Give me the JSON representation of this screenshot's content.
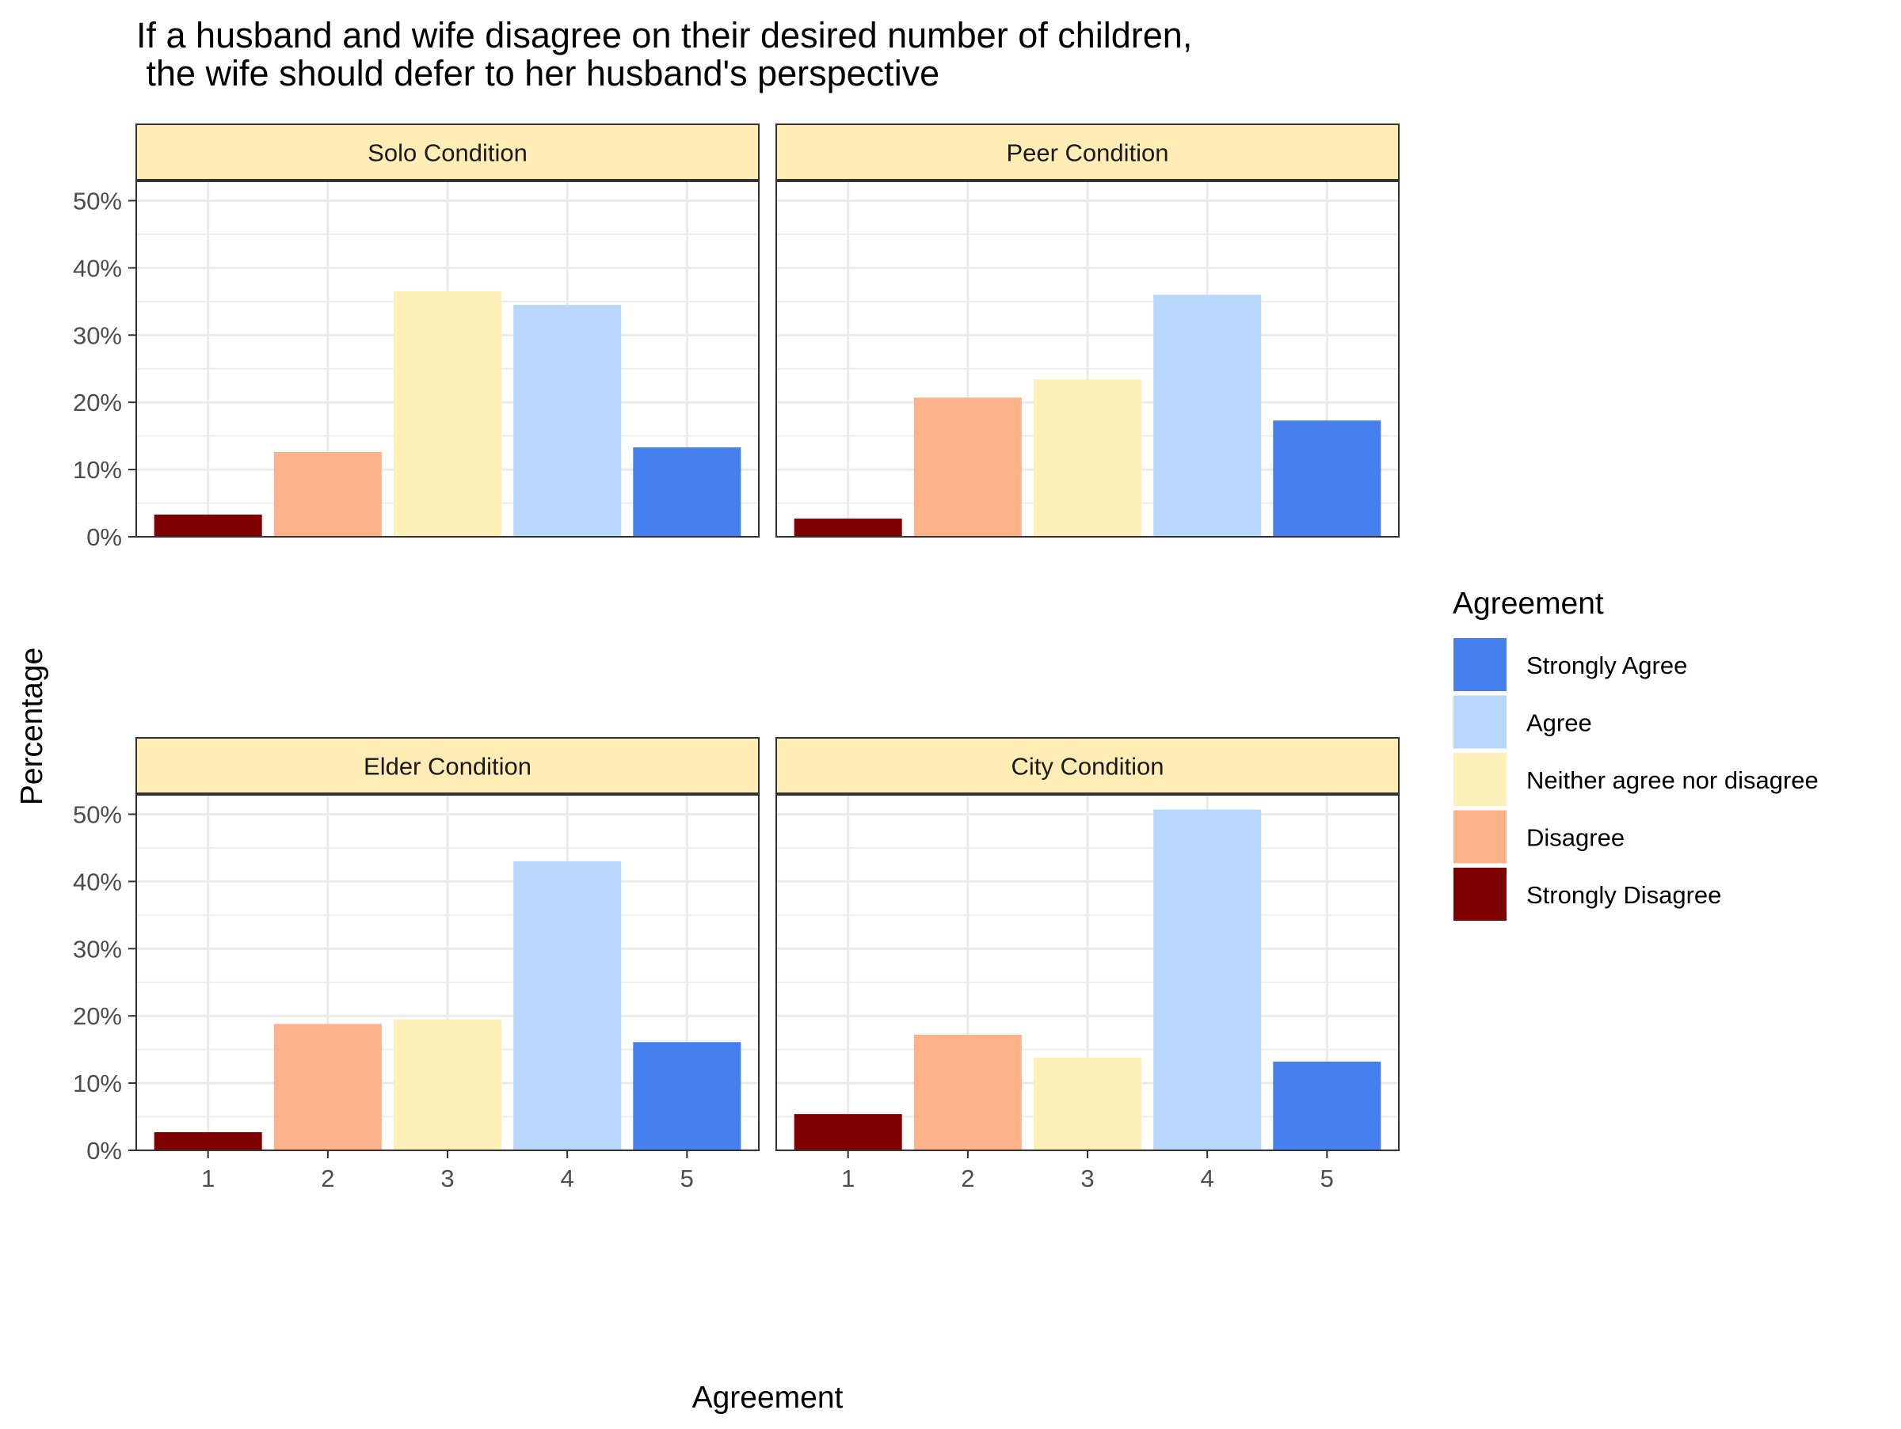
{
  "chart_data": {
    "type": "bar",
    "title_lines": [
      "If a husband and wife disagree on their desired number of children,",
      " the wife should defer to her husband's perspective"
    ],
    "xlabel": "Agreement",
    "ylabel": "Percentage",
    "categories": [
      "1",
      "2",
      "3",
      "4",
      "5"
    ],
    "y_ticks": [
      "0%",
      "10%",
      "20%",
      "30%",
      "40%",
      "50%"
    ],
    "ylim": [
      0,
      53
    ],
    "grid": true,
    "legend": {
      "title": "Agreement",
      "position": "right",
      "entries": [
        {
          "label": "Strongly Agree",
          "color": "#4580EE"
        },
        {
          "label": "Agree",
          "color": "#B9D7FD"
        },
        {
          "label": "Neither agree nor disagree",
          "color": "#FFEFB9"
        },
        {
          "label": "Disagree",
          "color": "#FDB28A"
        },
        {
          "label": "Strongly Disagree",
          "color": "#7E0000"
        }
      ]
    },
    "category_colors": [
      "#7E0000",
      "#FDB28A",
      "#FFEFB9",
      "#B9D7FD",
      "#4580EE"
    ],
    "panels": [
      {
        "name": "Solo Condition",
        "values": [
          3.3,
          12.6,
          36.5,
          34.5,
          13.3
        ]
      },
      {
        "name": "Peer Condition",
        "values": [
          2.7,
          20.7,
          23.4,
          36.0,
          17.3
        ]
      },
      {
        "name": "Elder Condition",
        "values": [
          2.7,
          18.8,
          19.5,
          43.0,
          16.1
        ]
      },
      {
        "name": "City Condition",
        "values": [
          5.4,
          17.2,
          13.8,
          50.7,
          13.2
        ]
      }
    ]
  }
}
